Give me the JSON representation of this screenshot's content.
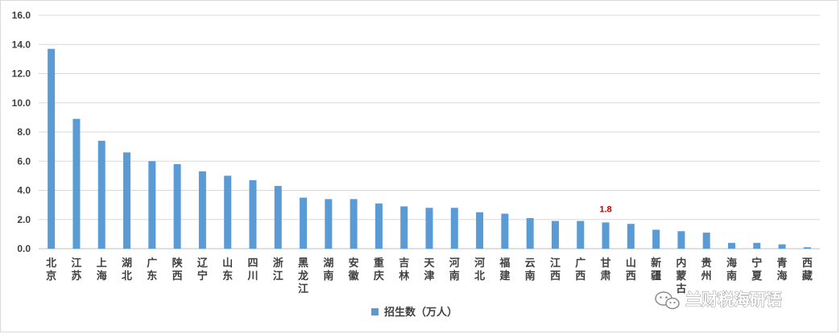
{
  "chart_data": {
    "type": "bar",
    "categories": [
      "北京",
      "江苏",
      "上海",
      "湖北",
      "广东",
      "陕西",
      "辽宁",
      "山东",
      "四川",
      "浙江",
      "黑龙江",
      "湖南",
      "安徽",
      "重庆",
      "吉林",
      "天津",
      "河南",
      "河北",
      "福建",
      "云南",
      "江西",
      "广西",
      "甘肃",
      "山西",
      "新疆",
      "内蒙古",
      "贵州",
      "海南",
      "宁夏",
      "青海",
      "西藏"
    ],
    "series": [
      {
        "name": "招生数（万人）",
        "color": "#5b9bd5",
        "values": [
          13.7,
          8.9,
          7.4,
          6.6,
          6.0,
          5.8,
          5.3,
          5.0,
          4.7,
          4.3,
          3.5,
          3.4,
          3.4,
          3.1,
          2.9,
          2.8,
          2.8,
          2.5,
          2.4,
          2.1,
          1.9,
          1.9,
          1.8,
          1.7,
          1.3,
          1.2,
          1.1,
          0.4,
          0.4,
          0.3,
          0.1
        ]
      }
    ],
    "ylim": [
      0,
      16
    ],
    "yticks": [
      "0.0",
      "2.0",
      "4.0",
      "6.0",
      "8.0",
      "10.0",
      "12.0",
      "14.0",
      "16.0"
    ],
    "grid": true,
    "legend_position": "bottom-center",
    "annotations": [
      {
        "category": "甘肃",
        "text": "1.8",
        "color": "#c00000"
      }
    ]
  },
  "watermark": {
    "text": "兰财税海研语",
    "icon": "wechat-icon"
  }
}
